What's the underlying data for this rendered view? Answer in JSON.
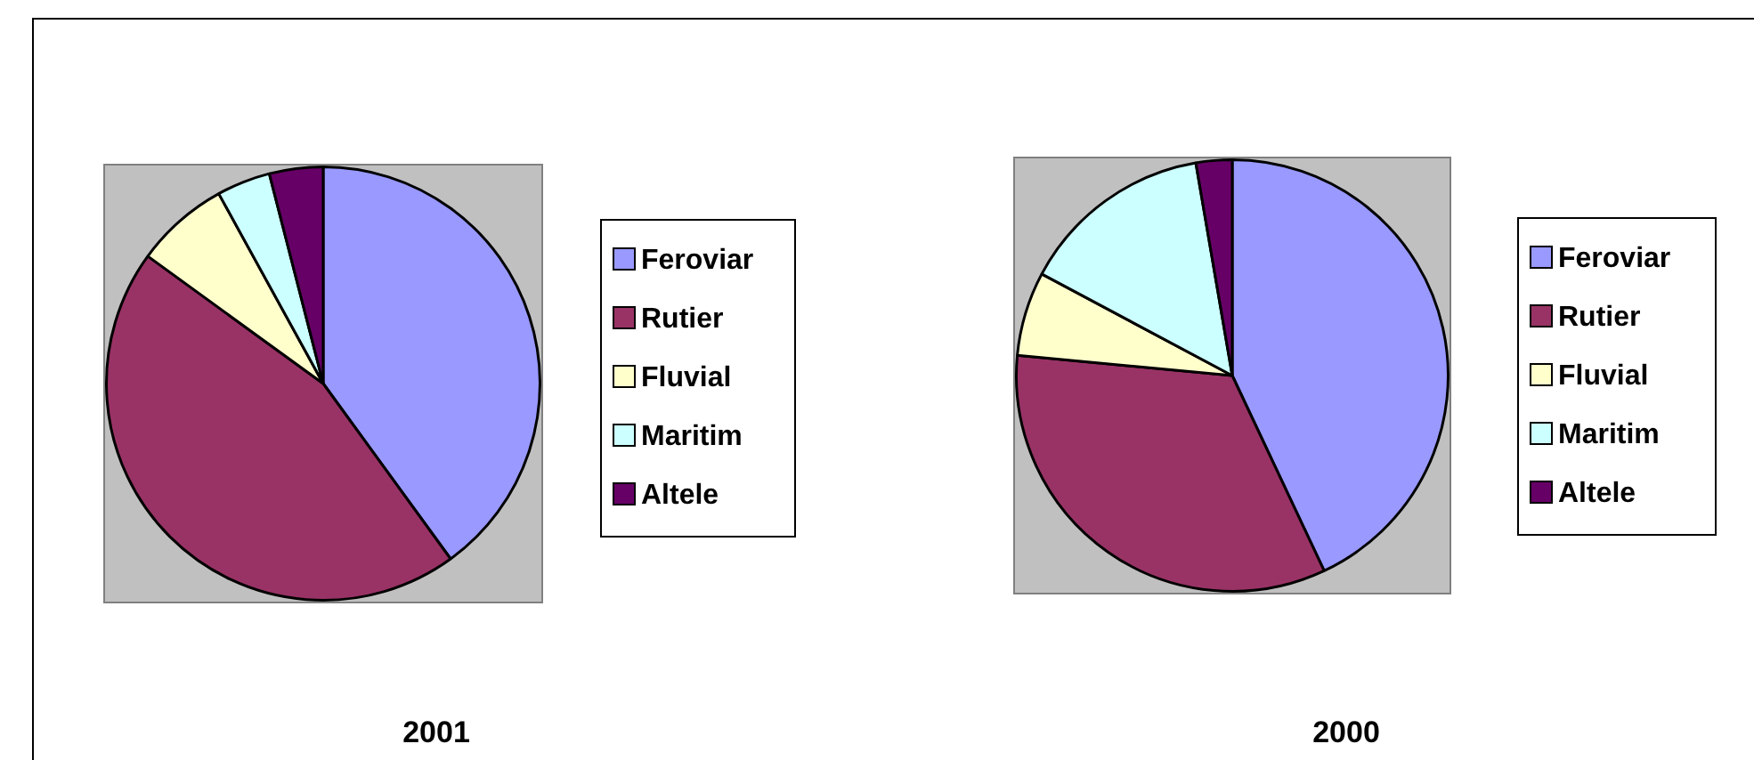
{
  "chart_data": [
    {
      "type": "pie",
      "title": "2001",
      "categories": [
        "Feroviar",
        "Rutier",
        "Fluvial",
        "Maritim",
        "Altele"
      ],
      "values": [
        40,
        45,
        7,
        4,
        4
      ],
      "colors": [
        "#9999ff",
        "#993366",
        "#ffffcc",
        "#ccffff",
        "#660066"
      ],
      "legend": "right"
    },
    {
      "type": "pie",
      "title": "2000",
      "categories": [
        "Feroviar",
        "Rutier",
        "Fluvial",
        "Maritim",
        "Altele"
      ],
      "values": [
        43,
        33.5,
        6.3,
        14.5,
        2.7
      ],
      "colors": [
        "#9999ff",
        "#993366",
        "#ffffcc",
        "#ccffff",
        "#660066"
      ],
      "legend": "right"
    }
  ]
}
